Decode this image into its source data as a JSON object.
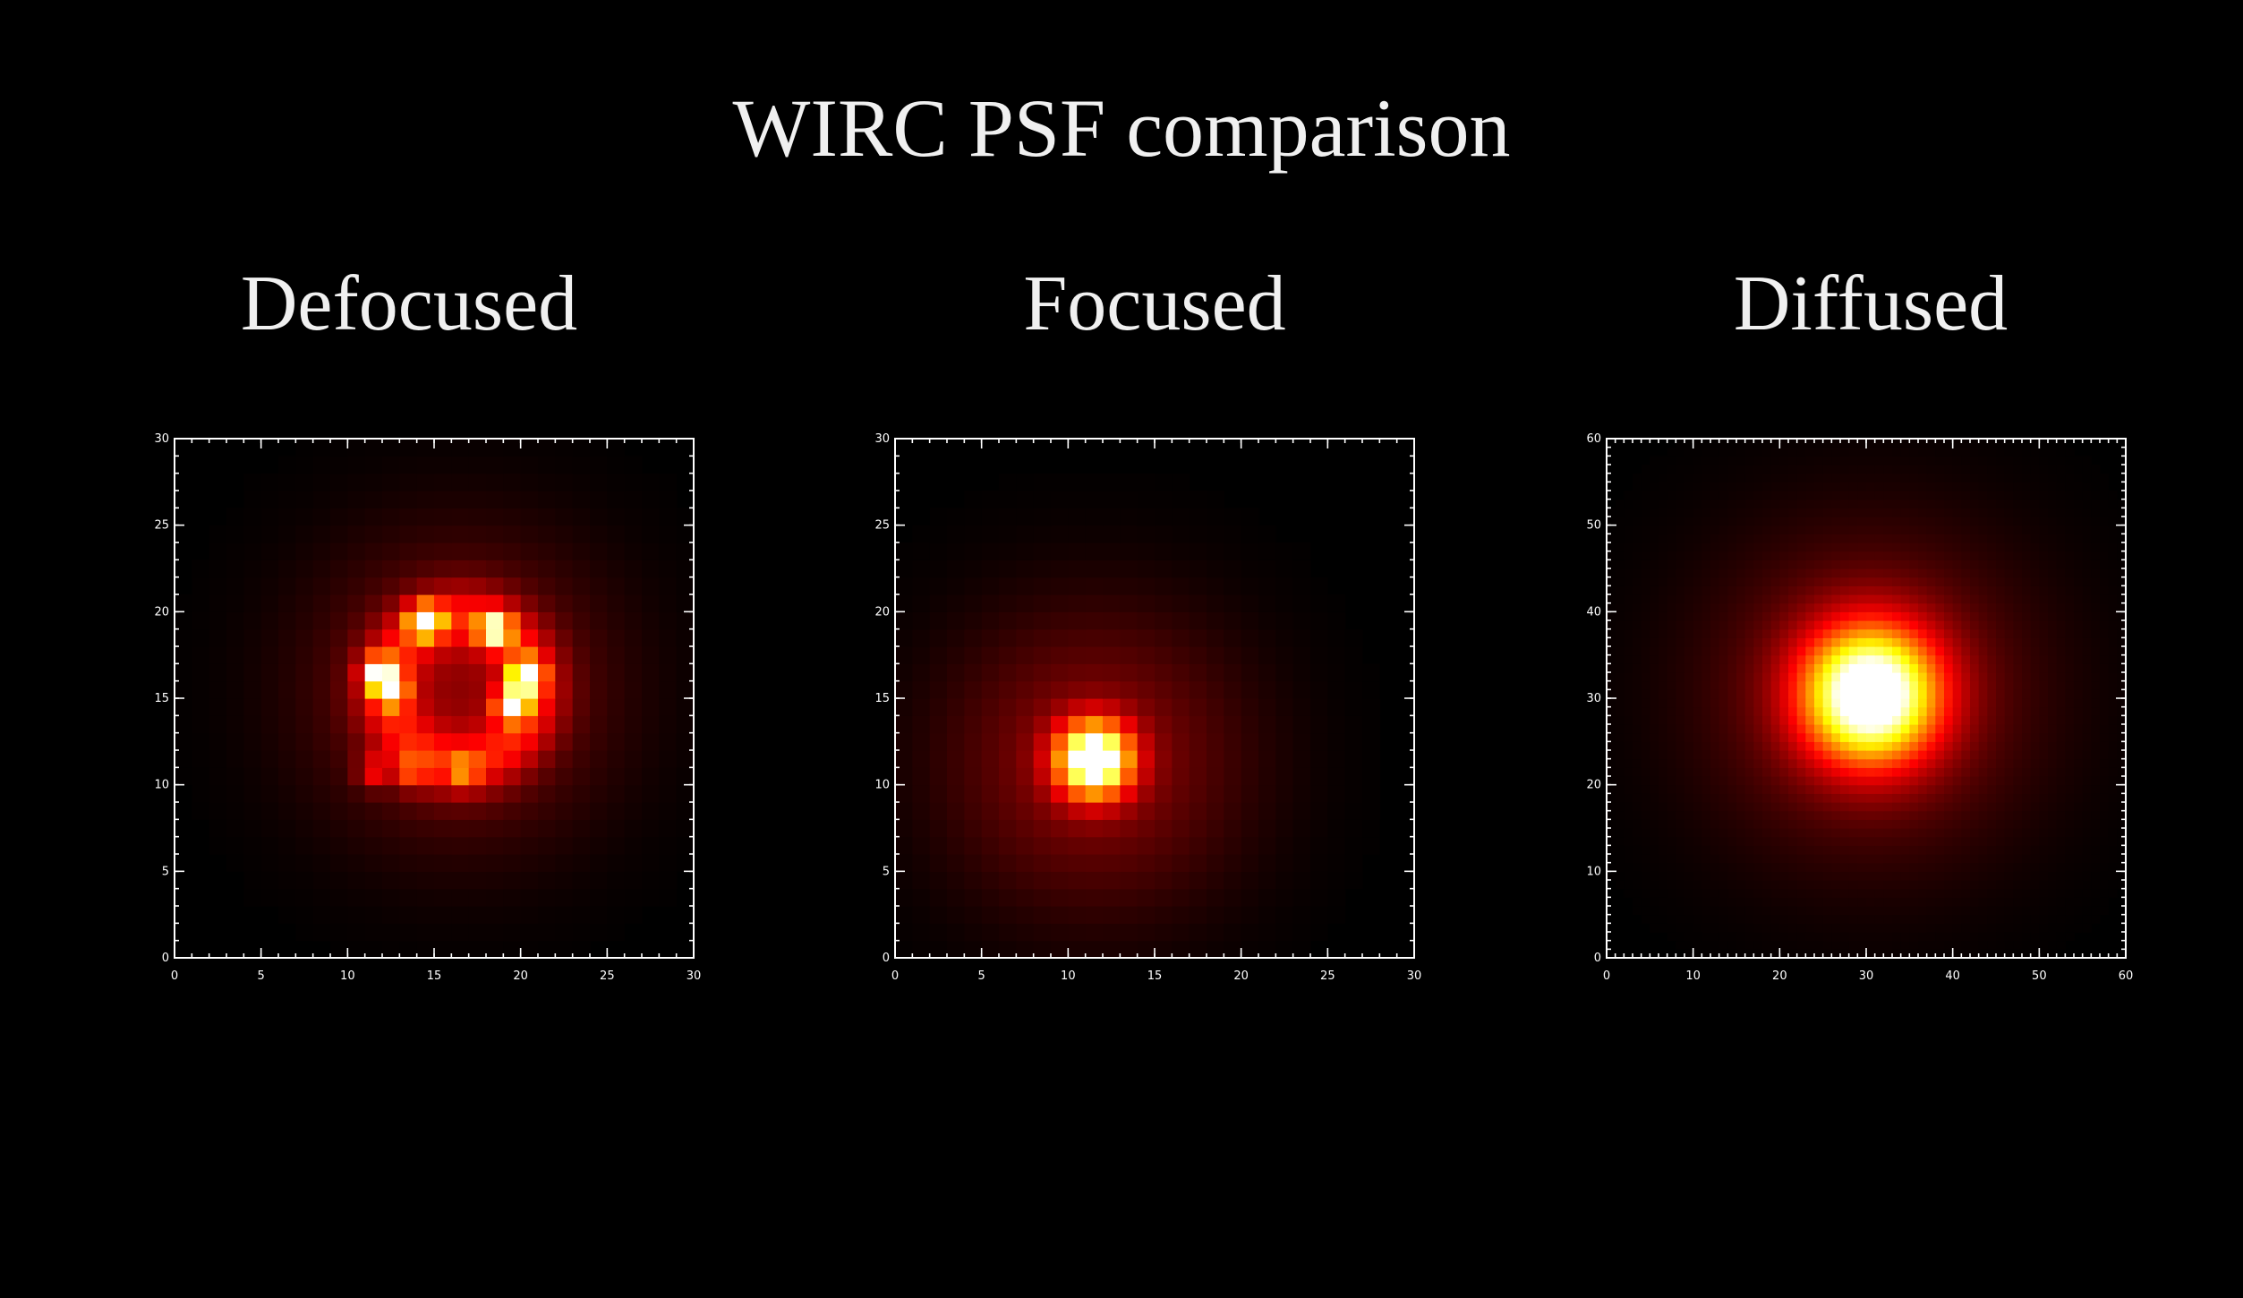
{
  "slide": {
    "title": "WIRC PSF comparison"
  },
  "colors": {
    "background": "#000000",
    "text": "#f0f0f0",
    "axes": "#ffffff",
    "colormap": "hot: black-red-orange-yellow-white"
  },
  "chart_data": [
    {
      "type": "heatmap",
      "title": "Defocused",
      "grid_size": 30,
      "xlim": [
        0,
        30
      ],
      "ylim": [
        0,
        30
      ],
      "xticks": [
        0,
        5,
        10,
        15,
        20,
        25,
        30
      ],
      "yticks": [
        0,
        5,
        10,
        15,
        20,
        25,
        30
      ],
      "xtick_labels": [
        "0",
        "5",
        "10",
        "15",
        "20",
        "25",
        "30"
      ],
      "ytick_labels": [
        "0",
        "5",
        "10",
        "15",
        "20",
        "25",
        "30"
      ],
      "minor_tick_step": 1,
      "profile": "ring",
      "center": [
        16.5,
        15.5
      ],
      "ring_radius": 4.2,
      "ring_width": 1.3,
      "halo_sigma": 6.0,
      "hotspots": [
        [
          14.5,
          19.5,
          1.0
        ],
        [
          18.5,
          19.0,
          0.9
        ],
        [
          20.3,
          16.3,
          1.05
        ],
        [
          19.5,
          14.7,
          0.95
        ],
        [
          11.8,
          16.5,
          0.85
        ],
        [
          12.5,
          15.5,
          0.7
        ],
        [
          11.5,
          10.8,
          0.35
        ],
        [
          13.7,
          10.8,
          0.35
        ],
        [
          16.7,
          10.8,
          0.35
        ]
      ],
      "grid": false
    },
    {
      "type": "heatmap",
      "title": "Focused",
      "grid_size": 30,
      "xlim": [
        0,
        30
      ],
      "ylim": [
        0,
        30
      ],
      "xticks": [
        0,
        5,
        10,
        15,
        20,
        25,
        30
      ],
      "yticks": [
        0,
        5,
        10,
        15,
        20,
        25,
        30
      ],
      "xtick_labels": [
        "0",
        "5",
        "10",
        "15",
        "20",
        "25",
        "30"
      ],
      "ytick_labels": [
        "0",
        "5",
        "10",
        "15",
        "20",
        "25",
        "30"
      ],
      "minor_tick_step": 1,
      "profile": "gaussian",
      "center": [
        11.5,
        11.5
      ],
      "core_sigma": 1.5,
      "halo_sigma": 6.0,
      "grid": false
    },
    {
      "type": "heatmap",
      "title": "Diffused",
      "grid_size": 60,
      "xlim": [
        0,
        60
      ],
      "ylim": [
        0,
        60
      ],
      "xticks": [
        0,
        10,
        20,
        30,
        40,
        50,
        60
      ],
      "yticks": [
        0,
        10,
        20,
        30,
        40,
        50,
        60
      ],
      "xtick_labels": [
        "0",
        "10",
        "20",
        "30",
        "40",
        "50",
        "60"
      ],
      "ytick_labels": [
        "0",
        "10",
        "20",
        "30",
        "40",
        "50",
        "60"
      ],
      "minor_tick_step": 1,
      "profile": "gaussian",
      "center": [
        30.5,
        30.5
      ],
      "core_sigma": 5.5,
      "halo_sigma": 13.0,
      "grid": false
    }
  ]
}
